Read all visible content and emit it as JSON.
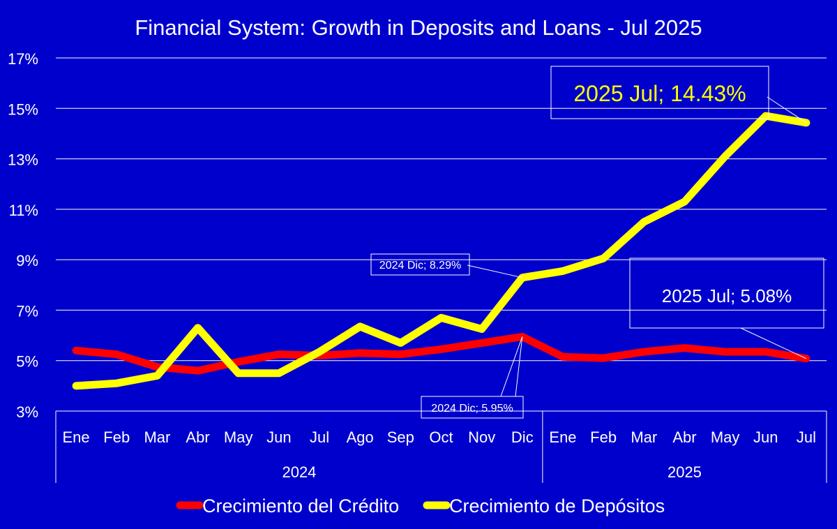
{
  "chart_data": {
    "type": "line",
    "title": "Financial System: Growth in Deposits and Loans - Jul 2025",
    "xlabel": "",
    "ylabel": "",
    "ylim": [
      3,
      17
    ],
    "yticks": [
      3,
      5,
      7,
      9,
      11,
      13,
      15,
      17
    ],
    "ytick_suffix": "%",
    "grid": true,
    "legend_position": "bottom",
    "categories": [
      "Ene",
      "Feb",
      "Mar",
      "Abr",
      "May",
      "Jun",
      "Jul",
      "Ago",
      "Sep",
      "Oct",
      "Nov",
      "Dic",
      "Ene",
      "Feb",
      "Mar",
      "Abr",
      "May",
      "Jun",
      "Jul"
    ],
    "groups": [
      {
        "label": "2024",
        "start": 0,
        "end": 11
      },
      {
        "label": "2025",
        "start": 12,
        "end": 18
      }
    ],
    "series": [
      {
        "name": "Crecimiento del Crédito",
        "color": "#ff0000",
        "values": [
          5.4,
          5.25,
          4.75,
          4.6,
          4.95,
          5.25,
          5.2,
          5.3,
          5.25,
          5.45,
          5.7,
          5.95,
          5.15,
          5.1,
          5.35,
          5.5,
          5.35,
          5.35,
          5.08
        ]
      },
      {
        "name": "Crecimiento de Depósitos",
        "color": "#ffff00",
        "values": [
          4.0,
          4.1,
          4.4,
          6.3,
          4.5,
          4.5,
          5.35,
          6.35,
          5.7,
          6.7,
          6.25,
          8.29,
          8.55,
          9.05,
          10.5,
          11.3,
          13.1,
          14.7,
          14.43
        ]
      }
    ],
    "annotations": [
      {
        "text": "2025 Jul; 14.43%",
        "series": 1,
        "index": 18,
        "color": "#ffff00"
      },
      {
        "text": "2024 Dic; 8.29%",
        "series": 1,
        "index": 11,
        "color": "#ffffff"
      },
      {
        "text": "2025 Jul; 5.08%",
        "series": 0,
        "index": 18,
        "color": "#ffffff"
      },
      {
        "text": "2024 Dic; 5.95%",
        "series": 0,
        "index": 11,
        "color": "#ffffff"
      }
    ]
  }
}
